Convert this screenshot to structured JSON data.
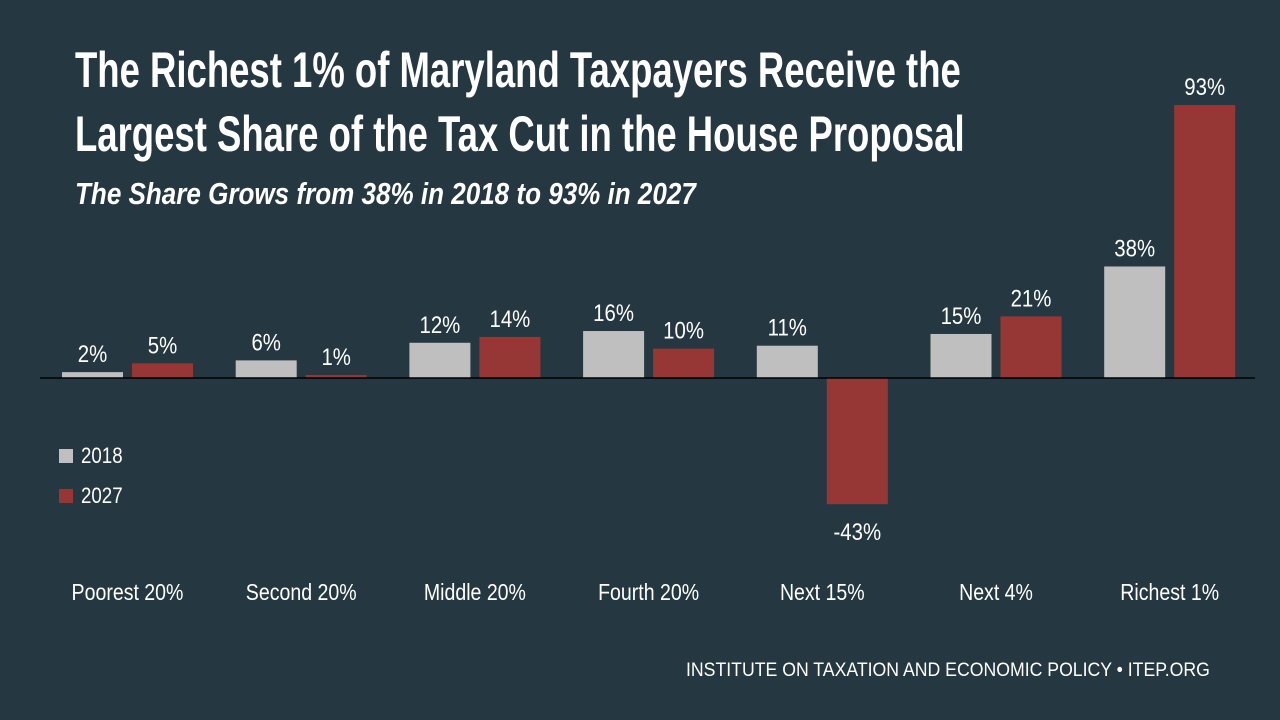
{
  "title_lines": [
    "The Richest 1% of Maryland Taxpayers Receive the",
    "Largest Share of the Tax Cut in the House Proposal"
  ],
  "subtitle": "The Share Grows from 38% in 2018 to 93% in 2027",
  "footer": "INSTITUTE ON TAXATION AND ECONOMIC POLICY • ITEP.ORG",
  "colors": {
    "background": "#253842",
    "series_2018": "#bfbfbf",
    "series_2027": "#963735"
  },
  "chart_data": {
    "type": "bar",
    "title": "The Richest 1% of Maryland Taxpayers Receive the Largest Share of the Tax Cut in the House Proposal",
    "subtitle": "The Share Grows from 38% in 2018 to 93% in 2027",
    "categories": [
      "Poorest 20%",
      "Second 20%",
      "Middle 20%",
      "Fourth 20%",
      "Next 15%",
      "Next 4%",
      "Richest 1%"
    ],
    "series": [
      {
        "name": "2018",
        "values": [
          2,
          6,
          12,
          16,
          11,
          15,
          38
        ],
        "labels": [
          "2%",
          "6%",
          "12%",
          "16%",
          "11%",
          "15%",
          "38%"
        ],
        "color": "#bfbfbf"
      },
      {
        "name": "2027",
        "values": [
          5,
          1,
          14,
          10,
          -43,
          21,
          93
        ],
        "labels": [
          "5%",
          "1%",
          "14%",
          "10%",
          "-43%",
          "21%",
          "93%"
        ],
        "color": "#963735"
      }
    ],
    "ylim": [
      -43,
      93
    ],
    "grid": false,
    "legend_placement": "left"
  }
}
